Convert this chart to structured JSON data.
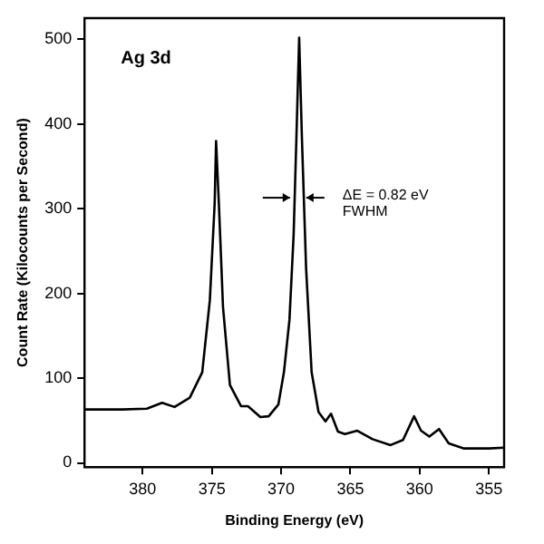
{
  "chart_data": {
    "type": "line",
    "xlabel": "Binding Energy (eV)",
    "ylabel": "Count Rate (Kilocounts per Second)",
    "x": [
      384.2,
      381.5,
      379.7,
      378.6,
      377.7,
      376.6,
      375.7,
      375.15,
      374.8,
      374.7,
      374.5,
      374.2,
      373.7,
      372.9,
      372.4,
      371.5,
      370.9,
      370.2,
      369.8,
      369.4,
      369.1,
      368.9,
      368.7,
      368.5,
      368.2,
      367.8,
      367.3,
      366.8,
      366.4,
      365.9,
      365.4,
      364.5,
      363.4,
      362.1,
      361.2,
      360.4,
      359.9,
      359.3,
      358.6,
      357.9,
      356.8,
      355.0,
      353.9
    ],
    "series": [
      {
        "color": "#000000",
        "values": [
          63,
          63,
          64,
          71,
          66,
          77,
          107,
          192,
          307,
          380,
          307,
          184,
          92,
          67,
          67,
          54,
          55,
          69,
          107,
          169,
          269,
          383,
          502,
          383,
          230,
          107,
          60,
          49,
          58,
          37,
          34,
          38,
          28,
          21,
          27,
          55,
          38,
          31,
          40,
          23,
          17,
          17,
          18
        ]
      }
    ],
    "xlim": [
      384.2,
      353.9
    ],
    "xticks": [
      380,
      375,
      370,
      365,
      360,
      355
    ],
    "ylim": [
      -5,
      525
    ],
    "yticks": [
      0,
      100,
      200,
      300,
      400,
      500
    ],
    "grid": false,
    "legend": false,
    "marker": "none",
    "line_style": "solid",
    "annotations": [
      "Ag 3d",
      "ΔE = 0.82 eV\nFWHM"
    ]
  }
}
